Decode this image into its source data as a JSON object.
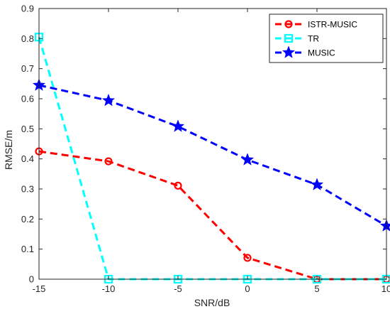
{
  "chart_data": {
    "type": "line",
    "title": "",
    "xlabel": "SNR/dB",
    "ylabel": "RMSE/m",
    "xlim": [
      -15,
      10
    ],
    "ylim": [
      0,
      0.9
    ],
    "xticks": [
      -15,
      -10,
      -5,
      0,
      5,
      10
    ],
    "yticks": [
      0,
      0.1,
      0.2,
      0.3,
      0.4,
      0.5,
      0.6,
      0.7,
      0.8,
      0.9
    ],
    "xtick_labels": [
      "-15",
      "-10",
      "-5",
      "0",
      "5",
      "10"
    ],
    "ytick_labels": [
      "0",
      "0.1",
      "0.2",
      "0.3",
      "0.4",
      "0.5",
      "0.6",
      "0.7",
      "0.8",
      "0.9"
    ],
    "grid": false,
    "legend_position": "top-right",
    "x": [
      -15,
      -10,
      -5,
      0,
      5,
      10
    ],
    "series": [
      {
        "name": "ISTR-MUSIC",
        "values": [
          0.425,
          0.392,
          0.311,
          0.071,
          0.0,
          0.0
        ],
        "color": "#ff0000",
        "marker": "circle",
        "line_style": "dashed"
      },
      {
        "name": "TR",
        "values": [
          0.805,
          0.0,
          0.0,
          0.0,
          0.0,
          0.0
        ],
        "color": "#00ffff",
        "marker": "square",
        "line_style": "dashed"
      },
      {
        "name": "MUSIC",
        "values": [
          0.645,
          0.594,
          0.508,
          0.397,
          0.314,
          0.177
        ],
        "color": "#0000ff",
        "marker": "star",
        "line_style": "dashed"
      }
    ]
  }
}
